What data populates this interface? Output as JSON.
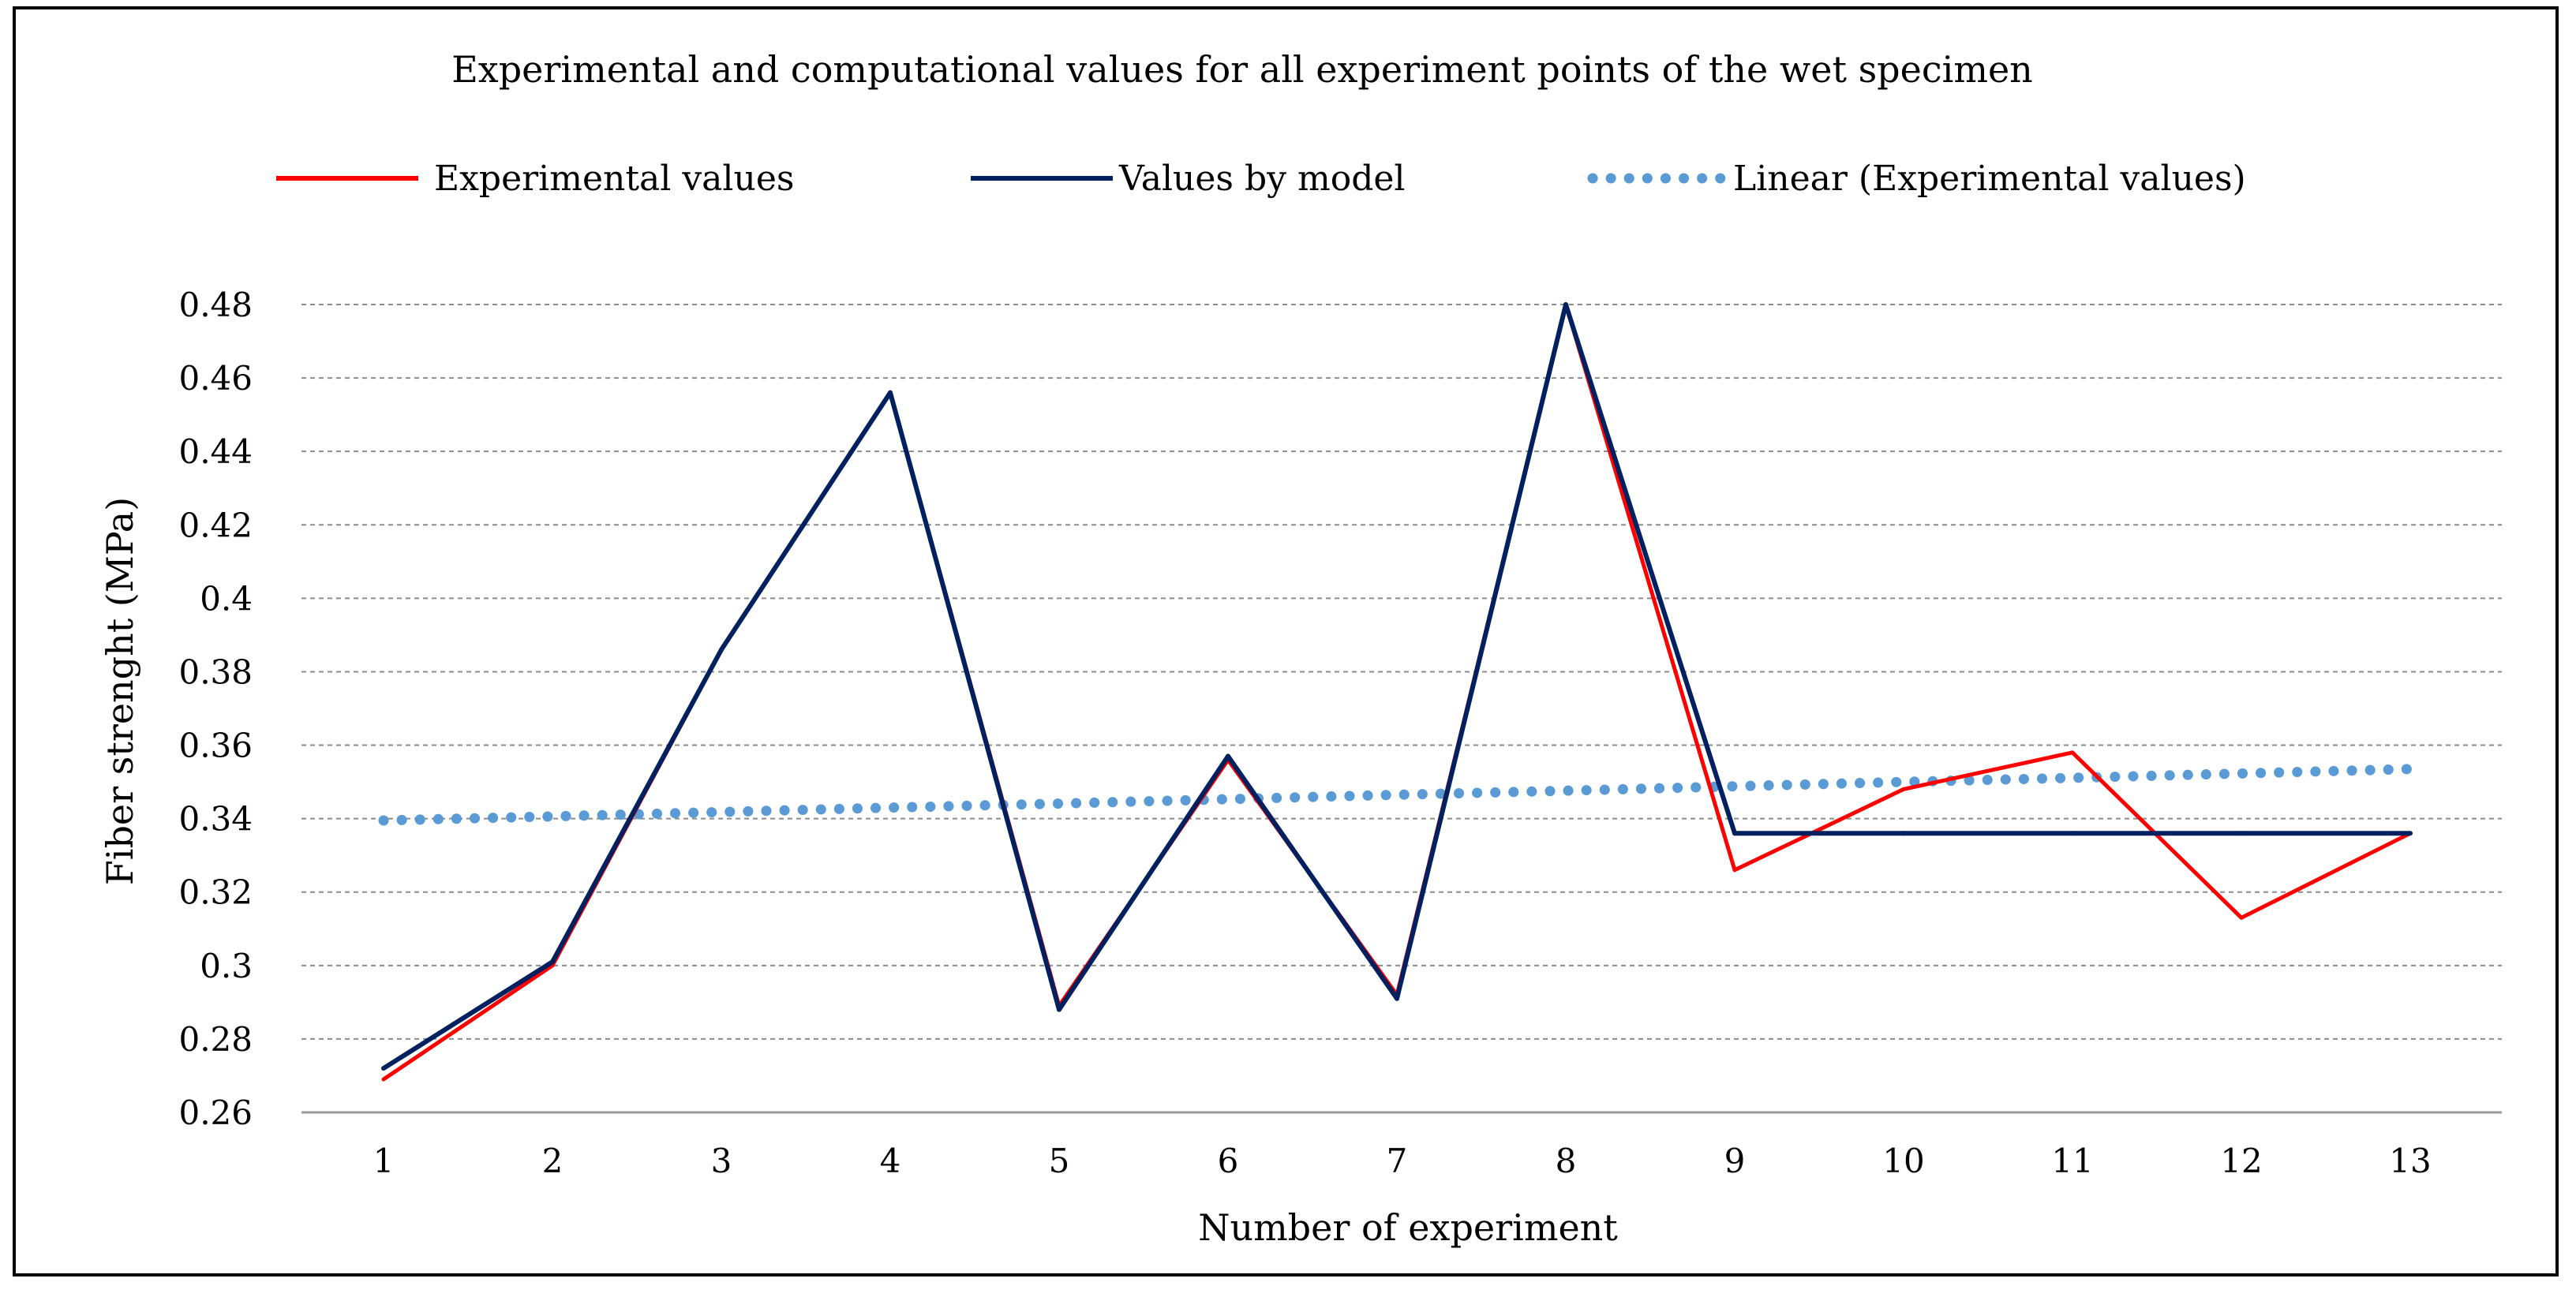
{
  "chart_data": {
    "type": "line",
    "title": "Experimental and computational values for all experiment points of the wet specimen",
    "xlabel": "Number of experiment",
    "ylabel": "Fiber strenght (MPa)",
    "categories": [
      "1",
      "2",
      "3",
      "4",
      "5",
      "6",
      "7",
      "8",
      "9",
      "10",
      "11",
      "12",
      "13"
    ],
    "ylim": [
      0.26,
      0.48
    ],
    "yticks": [
      0.26,
      0.28,
      0.3,
      0.32,
      0.34,
      0.36,
      0.38,
      0.4,
      0.42,
      0.44,
      0.46,
      0.48
    ],
    "ytick_labels": [
      "0.26",
      "0.28",
      "0.3",
      "0.32",
      "0.34",
      "0.36",
      "0.38",
      "0.4",
      "0.42",
      "0.44",
      "0.46",
      "0.48"
    ],
    "grid": true,
    "legend_position": "top",
    "series": [
      {
        "name": "Experimental values",
        "color": "#ff0000",
        "style": "solid",
        "values": [
          0.269,
          0.3,
          0.386,
          0.456,
          0.289,
          0.356,
          0.292,
          0.48,
          0.326,
          0.348,
          0.358,
          0.313,
          0.336
        ]
      },
      {
        "name": "Values by model",
        "color": "#002060",
        "style": "solid",
        "values": [
          0.272,
          0.301,
          0.386,
          0.456,
          0.288,
          0.357,
          0.291,
          0.48,
          0.336,
          0.336,
          0.336,
          0.336,
          0.336
        ]
      },
      {
        "name": "Linear (Experimental values)",
        "color": "#5b9bd5",
        "style": "dotted",
        "values": [
          0.3395,
          0.3406,
          0.3418,
          0.343,
          0.3441,
          0.3453,
          0.3465,
          0.3476,
          0.3488,
          0.35,
          0.3511,
          0.3523,
          0.3535
        ]
      }
    ]
  }
}
